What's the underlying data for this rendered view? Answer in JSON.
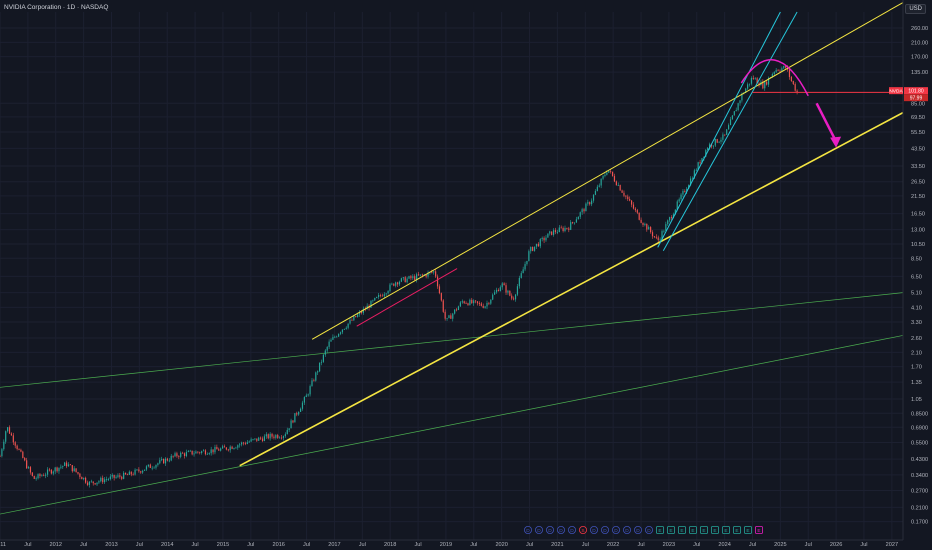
{
  "header": {
    "title": "NVIDIA Corporation · 1D · NASDAQ",
    "currency": "USD"
  },
  "colors": {
    "background": "#131722",
    "axis_text": "#b2b5be",
    "candle_up": "#26a69a",
    "candle_down": "#ef5350",
    "channel_yellow": "#f4e542",
    "cyan_lines": "#26c6da",
    "green_lines": "#4caf50",
    "magenta": "#e91ec3",
    "red_line": "#f23645",
    "pink_line": "#e91e63"
  },
  "chart_data": {
    "type": "candlestick",
    "symbol": "NVDA",
    "y_scale": "log",
    "ylim": [
      0.15,
      330
    ],
    "y_ticks": [
      "260.00",
      "210.00",
      "170.00",
      "135.00",
      "85.00",
      "69.50",
      "55.50",
      "43.50",
      "33.50",
      "26.50",
      "21.50",
      "16.50",
      "13.00",
      "10.50",
      "8.50",
      "6.50",
      "5.10",
      "4.10",
      "3.30",
      "2.60",
      "2.10",
      "1.70",
      "1.35",
      "1.05",
      "0.8500",
      "0.6900",
      "0.5500",
      "0.4300",
      "0.3400",
      "0.2700",
      "0.2100",
      "0.1700"
    ],
    "x_ticks": [
      "2011",
      "Jul",
      "2012",
      "Jul",
      "2013",
      "Jul",
      "2014",
      "Jul",
      "2015",
      "Jul",
      "2016",
      "Jul",
      "2017",
      "Jul",
      "2018",
      "Jul",
      "2019",
      "Jul",
      "2020",
      "Jul",
      "2021",
      "Jul",
      "2022",
      "Jul",
      "2023",
      "Jul",
      "2024",
      "Jul",
      "2025",
      "Jul",
      "2026",
      "Jul",
      "2027"
    ],
    "xlim": [
      2011.0,
      2027.2
    ],
    "price_path": [
      [
        2011.0,
        0.45
      ],
      [
        2011.12,
        0.7
      ],
      [
        2011.3,
        0.52
      ],
      [
        2011.6,
        0.32
      ],
      [
        2011.9,
        0.36
      ],
      [
        2012.2,
        0.4
      ],
      [
        2012.6,
        0.3
      ],
      [
        2012.9,
        0.32
      ],
      [
        2013.3,
        0.34
      ],
      [
        2013.8,
        0.4
      ],
      [
        2014.2,
        0.46
      ],
      [
        2014.6,
        0.48
      ],
      [
        2015.0,
        0.5
      ],
      [
        2015.4,
        0.55
      ],
      [
        2015.8,
        0.6
      ],
      [
        2016.1,
        0.62
      ],
      [
        2016.5,
        1.1
      ],
      [
        2016.9,
        2.4
      ],
      [
        2017.1,
        2.9
      ],
      [
        2017.4,
        3.6
      ],
      [
        2017.8,
        4.8
      ],
      [
        2018.1,
        6.0
      ],
      [
        2018.6,
        6.6
      ],
      [
        2018.8,
        7.0
      ],
      [
        2019.0,
        3.3
      ],
      [
        2019.3,
        4.5
      ],
      [
        2019.7,
        4.2
      ],
      [
        2020.0,
        5.8
      ],
      [
        2020.2,
        4.6
      ],
      [
        2020.5,
        9.5
      ],
      [
        2020.9,
        12.5
      ],
      [
        2021.2,
        13.5
      ],
      [
        2021.6,
        20.0
      ],
      [
        2021.9,
        32.0
      ],
      [
        2022.2,
        22.0
      ],
      [
        2022.5,
        15.0
      ],
      [
        2022.8,
        11.0
      ],
      [
        2023.0,
        15.0
      ],
      [
        2023.4,
        28.0
      ],
      [
        2023.7,
        45.0
      ],
      [
        2024.0,
        52.0
      ],
      [
        2024.3,
        95.0
      ],
      [
        2024.5,
        125.0
      ],
      [
        2024.7,
        110.0
      ],
      [
        2024.9,
        140.0
      ],
      [
        2025.1,
        145.0
      ],
      [
        2025.2,
        118.0
      ],
      [
        2025.3,
        100.0
      ]
    ],
    "last_price": "101.80",
    "price_label_2": "97.99",
    "tag": "NVDA",
    "event_marker_letters": [
      "D",
      "D",
      "D",
      "D",
      "D",
      "S",
      "D",
      "D",
      "D",
      "D",
      "D",
      "D",
      "E",
      "E",
      "E",
      "E",
      "E",
      "E",
      "E",
      "E",
      "E",
      "E"
    ]
  }
}
